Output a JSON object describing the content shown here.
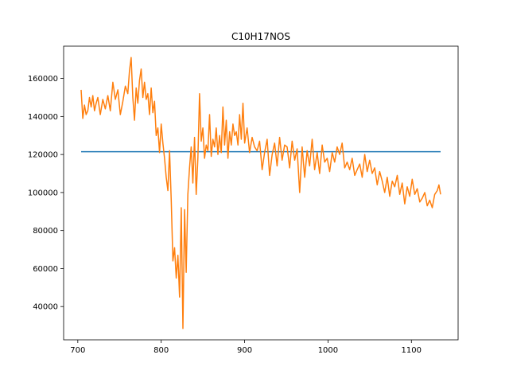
{
  "chart_data": {
    "type": "line",
    "title": "C10H17NOS",
    "xlabel": "",
    "ylabel": "",
    "xlim": [
      683,
      1156
    ],
    "ylim": [
      22500,
      177000
    ],
    "xticks": [
      700,
      800,
      900,
      1000,
      1100
    ],
    "yticks": [
      40000,
      60000,
      80000,
      100000,
      120000,
      140000,
      160000
    ],
    "grid": false,
    "legend": "none",
    "series": [
      {
        "color": "#1f77b4",
        "x": [
          704,
          1135
        ],
        "y": [
          121500,
          121500
        ]
      },
      {
        "color": "#ff7f0e",
        "x": [
          704,
          706,
          708,
          710,
          712,
          714,
          716,
          718,
          720,
          722,
          724,
          727,
          730,
          733,
          736,
          739,
          742,
          745,
          748,
          751,
          754,
          757,
          760,
          762,
          764,
          766,
          768,
          770,
          772,
          774,
          776,
          778,
          780,
          782,
          784,
          786,
          788,
          790,
          792,
          794,
          796,
          798,
          800,
          802,
          804,
          806,
          808,
          810,
          812,
          814,
          816,
          818,
          820,
          822,
          824,
          826,
          828,
          830,
          832,
          834,
          836,
          838,
          840,
          842,
          844,
          846,
          848,
          850,
          852,
          854,
          856,
          858,
          860,
          862,
          864,
          866,
          868,
          870,
          872,
          874,
          876,
          878,
          880,
          882,
          884,
          886,
          888,
          890,
          892,
          894,
          896,
          898,
          900,
          903,
          906,
          909,
          912,
          915,
          918,
          921,
          924,
          927,
          930,
          933,
          936,
          939,
          942,
          945,
          948,
          951,
          954,
          957,
          960,
          963,
          966,
          969,
          972,
          975,
          978,
          981,
          984,
          987,
          990,
          993,
          996,
          999,
          1002,
          1005,
          1008,
          1011,
          1014,
          1017,
          1020,
          1023,
          1026,
          1029,
          1032,
          1035,
          1038,
          1041,
          1044,
          1047,
          1050,
          1053,
          1056,
          1059,
          1062,
          1065,
          1068,
          1071,
          1074,
          1077,
          1080,
          1083,
          1086,
          1089,
          1092,
          1095,
          1098,
          1101,
          1104,
          1107,
          1110,
          1113,
          1116,
          1119,
          1122,
          1125,
          1128,
          1131,
          1133,
          1135
        ],
        "y": [
          154000,
          139000,
          146000,
          141000,
          143000,
          150000,
          145000,
          151000,
          143000,
          147000,
          150000,
          141000,
          149000,
          144000,
          151000,
          143000,
          158000,
          149000,
          154000,
          141000,
          148000,
          156000,
          152000,
          164000,
          171000,
          150000,
          138000,
          155000,
          147000,
          159000,
          165000,
          150000,
          158000,
          149000,
          152000,
          141000,
          155000,
          142000,
          148000,
          130000,
          134000,
          121000,
          136000,
          126000,
          118000,
          108000,
          101000,
          122000,
          96000,
          64000,
          71000,
          55000,
          67000,
          45000,
          92000,
          28500,
          91000,
          58000,
          99000,
          113000,
          124000,
          105000,
          129000,
          99000,
          118000,
          152000,
          127000,
          134000,
          118000,
          125000,
          122000,
          141000,
          119000,
          128000,
          124000,
          134000,
          120000,
          130000,
          121000,
          145000,
          125000,
          138000,
          118000,
          132000,
          125000,
          136000,
          130000,
          132000,
          125000,
          141000,
          128000,
          147000,
          126000,
          134000,
          121000,
          129000,
          124000,
          122000,
          127000,
          112000,
          121000,
          128000,
          109000,
          120000,
          126000,
          114000,
          129000,
          117000,
          125000,
          124000,
          113000,
          127000,
          117000,
          123000,
          100000,
          124000,
          108000,
          122000,
          114000,
          128000,
          112000,
          121000,
          110000,
          125000,
          116000,
          118000,
          111000,
          121000,
          116000,
          124000,
          120000,
          126000,
          113000,
          116000,
          112000,
          118000,
          109000,
          112000,
          115000,
          108000,
          120000,
          111000,
          117000,
          110000,
          113000,
          104000,
          111000,
          106000,
          100000,
          108000,
          98000,
          106000,
          103000,
          109000,
          99000,
          105000,
          94000,
          103000,
          98000,
          107000,
          99000,
          102000,
          95000,
          97000,
          100000,
          93000,
          96000,
          92000,
          99000,
          101000,
          104000,
          99000
        ]
      }
    ]
  }
}
